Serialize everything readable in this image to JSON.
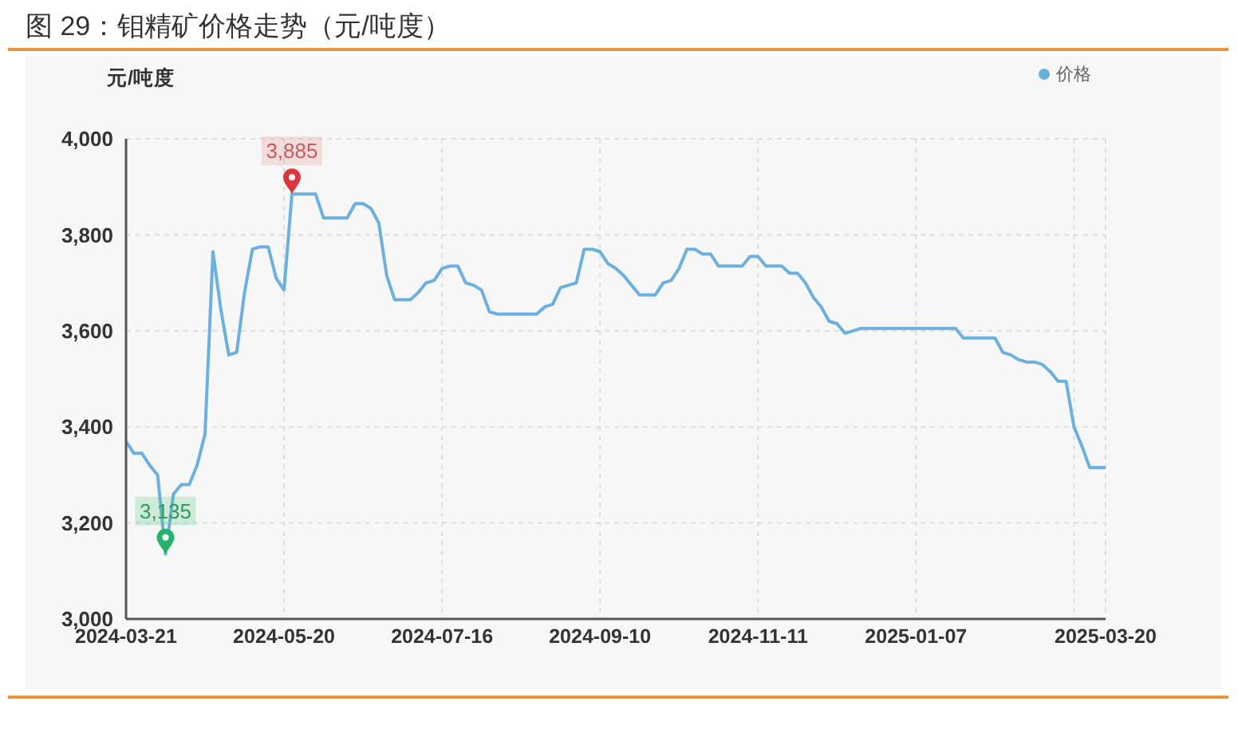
{
  "chart_data": {
    "type": "line",
    "title": "图 29：钼精矿价格走势（元/吨度）",
    "ylabel": "元/吨度",
    "categories": [
      "2024-03-21",
      null,
      null,
      null,
      null,
      null,
      null,
      null,
      null,
      null,
      null,
      null,
      null,
      null,
      null,
      null,
      null,
      null,
      null,
      null,
      "2024-05-20",
      null,
      null,
      null,
      null,
      null,
      null,
      null,
      null,
      null,
      null,
      null,
      null,
      null,
      null,
      null,
      null,
      null,
      null,
      null,
      "2024-07-16",
      null,
      null,
      null,
      null,
      null,
      null,
      null,
      null,
      null,
      null,
      null,
      null,
      null,
      null,
      null,
      null,
      null,
      null,
      null,
      "2024-09-10",
      null,
      null,
      null,
      null,
      null,
      null,
      null,
      null,
      null,
      null,
      null,
      null,
      null,
      null,
      null,
      null,
      null,
      null,
      null,
      "2024-11-11",
      null,
      null,
      null,
      null,
      null,
      null,
      null,
      null,
      null,
      null,
      null,
      null,
      null,
      null,
      null,
      null,
      null,
      null,
      null,
      "2025-01-07",
      null,
      null,
      null,
      null,
      null,
      null,
      null,
      null,
      null,
      null,
      null,
      null,
      null,
      null,
      null,
      null,
      null,
      null,
      null,
      null,
      null,
      null,
      null,
      "2025-03-20"
    ],
    "series": [
      {
        "name": "价格",
        "color": "#6cb0e0",
        "values": [
          3370,
          3345,
          3345,
          3320,
          3300,
          3135,
          3260,
          3280,
          3280,
          3320,
          3385,
          3765,
          3645,
          3550,
          3555,
          3680,
          3770,
          3775,
          3775,
          3710,
          3685,
          3885,
          3885,
          3885,
          3885,
          3835,
          3835,
          3835,
          3835,
          3865,
          3865,
          3855,
          3825,
          3715,
          3665,
          3665,
          3665,
          3680,
          3700,
          3705,
          3730,
          3735,
          3735,
          3700,
          3695,
          3685,
          3640,
          3635,
          3635,
          3635,
          3635,
          3635,
          3635,
          3650,
          3655,
          3690,
          3695,
          3700,
          3770,
          3770,
          3765,
          3740,
          3730,
          3715,
          3695,
          3675,
          3675,
          3675,
          3700,
          3705,
          3730,
          3770,
          3770,
          3760,
          3760,
          3735,
          3735,
          3735,
          3735,
          3755,
          3755,
          3735,
          3735,
          3735,
          3720,
          3720,
          3700,
          3670,
          3650,
          3620,
          3615,
          3595,
          3600,
          3605,
          3605,
          3605,
          3605,
          3605,
          3605,
          3605,
          3605,
          3605,
          3605,
          3605,
          3605,
          3605,
          3585,
          3585,
          3585,
          3585,
          3585,
          3555,
          3550,
          3540,
          3535,
          3535,
          3530,
          3515,
          3495,
          3495,
          3400,
          3360,
          3315,
          3315,
          3315
        ],
        "value_labels": [
          null,
          null,
          null,
          null,
          null,
          "3,135",
          null,
          null,
          null,
          null,
          null,
          null,
          null,
          null,
          null,
          null,
          null,
          null,
          null,
          null,
          null,
          "3,885",
          null,
          null,
          null,
          null,
          null,
          null,
          null,
          null,
          null,
          null,
          null,
          null,
          null,
          null,
          null,
          null,
          null,
          null,
          null,
          null,
          null,
          null,
          null,
          null,
          null,
          null,
          null,
          null,
          null,
          null,
          null,
          null,
          null,
          null,
          null,
          null,
          null,
          null,
          null,
          null,
          null,
          null,
          null,
          null,
          null,
          null,
          null,
          null,
          null,
          null,
          null,
          null,
          null,
          null,
          null,
          null,
          null,
          null,
          null,
          null,
          null,
          null,
          null,
          null,
          null,
          null,
          null,
          null,
          null,
          null,
          null,
          null,
          null,
          null,
          null,
          null,
          null,
          null,
          null,
          null,
          null,
          null,
          null,
          null,
          null,
          null,
          null,
          null,
          null,
          null,
          null,
          null,
          null,
          null,
          null,
          null,
          null,
          null,
          null,
          null,
          null,
          null,
          null
        ]
      }
    ],
    "ylim": [
      3000,
      4000
    ],
    "yticks": [
      {
        "value": 3000,
        "label": "3,000"
      },
      {
        "value": 3200,
        "label": "3,200"
      },
      {
        "value": 3400,
        "label": "3,400"
      },
      {
        "value": 3600,
        "label": "3,600"
      },
      {
        "value": 3800,
        "label": "3,800"
      },
      {
        "value": 4000,
        "label": "4,000"
      }
    ],
    "grid": true,
    "legend": "top right"
  }
}
